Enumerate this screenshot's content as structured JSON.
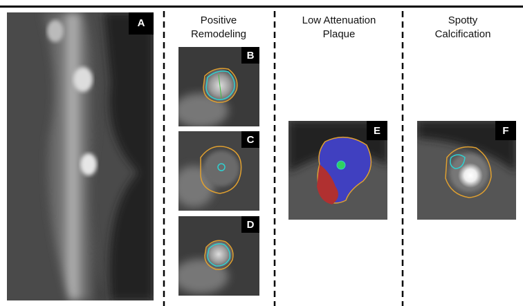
{
  "panels": [
    {
      "label": "A"
    },
    {
      "label": "B"
    },
    {
      "label": "C"
    },
    {
      "label": "D"
    },
    {
      "label": "E"
    },
    {
      "label": "F"
    }
  ],
  "columns": [
    {
      "title": [
        "Positive",
        "Remodeling"
      ]
    },
    {
      "title": [
        "Low Attenuation",
        "Plaque"
      ]
    },
    {
      "title": [
        "Spotty",
        "Calcification"
      ]
    }
  ]
}
